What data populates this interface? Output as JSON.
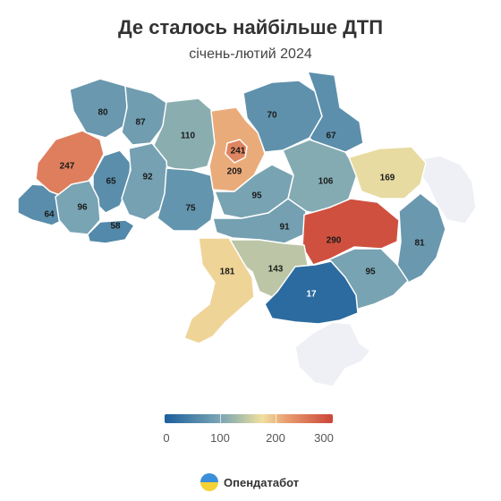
{
  "title": "Де сталось найбільше ДТП",
  "subtitle": "січень-лютий 2024",
  "colors": {
    "low": "#1a5f9c",
    "mid_low": "#7fa8b4",
    "mid": "#9fb9a9",
    "mid_high": "#f0dfa0",
    "high_orange": "#e9a072",
    "high": "#cc4538",
    "occupied": "#eef0f5"
  },
  "legend": {
    "ticks": [
      "0",
      "100",
      "200",
      "300"
    ],
    "min": 0,
    "max": 300
  },
  "regions": [
    {
      "name": "Volyn",
      "value": 80
    },
    {
      "name": "Rivne",
      "value": 87
    },
    {
      "name": "Zhytomyr",
      "value": 110
    },
    {
      "name": "Kyiv Oblast",
      "value": 209
    },
    {
      "name": "Kyiv",
      "value": 241
    },
    {
      "name": "Chernihiv",
      "value": 70
    },
    {
      "name": "Sumy",
      "value": 67
    },
    {
      "name": "Lviv",
      "value": 247
    },
    {
      "name": "Ternopil",
      "value": 65
    },
    {
      "name": "Khmelnytskyi",
      "value": 92
    },
    {
      "name": "Ivano-Frankivsk",
      "value": 96
    },
    {
      "name": "Zakarpattia",
      "value": 64
    },
    {
      "name": "Chernivtsi",
      "value": 58
    },
    {
      "name": "Vinnytsia",
      "value": 75
    },
    {
      "name": "Cherkasy",
      "value": 95
    },
    {
      "name": "Poltava",
      "value": 106
    },
    {
      "name": "Kharkiv",
      "value": 169
    },
    {
      "name": "Kirovohrad",
      "value": 91
    },
    {
      "name": "Dnipropetrovsk",
      "value": 290
    },
    {
      "name": "Donetsk",
      "value": 81
    },
    {
      "name": "Odesa",
      "value": 181
    },
    {
      "name": "Mykolaiv",
      "value": 143
    },
    {
      "name": "Zaporizhzhia",
      "value": 95
    },
    {
      "name": "Kherson",
      "value": 17
    }
  ],
  "brand": "Опендатабот"
}
